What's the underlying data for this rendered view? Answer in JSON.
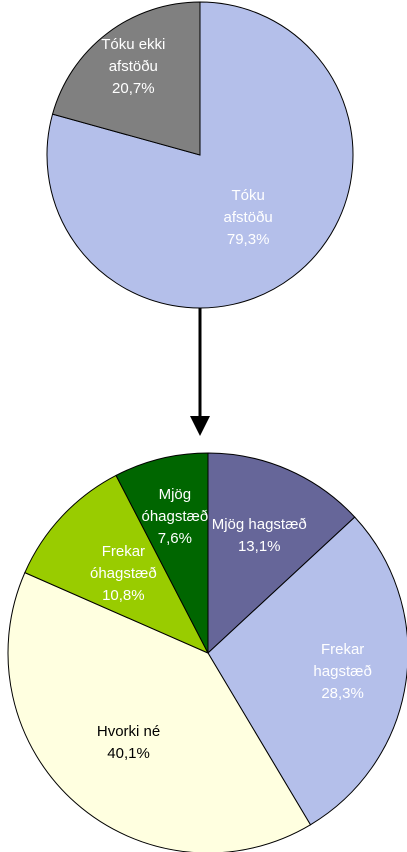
{
  "chart_data": [
    {
      "type": "pie",
      "categories": [
        "Tóku afstöðu",
        "Tóku ekki afstöðu"
      ],
      "values": [
        79.3,
        20.7
      ],
      "value_labels": [
        "79,3%",
        "20,7%"
      ],
      "colors": [
        "#b4bfea",
        "#808080"
      ],
      "label_colors": [
        "#ffffff",
        "#ffffff"
      ]
    },
    {
      "type": "pie",
      "categories": [
        "Mjög hagstæð",
        "Frekar hagstæð",
        "Hvorki né",
        "Frekar óhagstæð",
        "Mjög óhagstæð"
      ],
      "values": [
        13.1,
        28.3,
        40.1,
        10.8,
        7.6
      ],
      "value_labels": [
        "13,1%",
        "28,3%",
        "40,1%",
        "10,8%",
        "7,6%"
      ],
      "colors": [
        "#666699",
        "#b4bfea",
        "#ffffe0",
        "#99cc00",
        "#006600"
      ],
      "label_colors": [
        "#ffffff",
        "#ffffff",
        "#000000",
        "#ffffff",
        "#ffffff"
      ]
    }
  ]
}
